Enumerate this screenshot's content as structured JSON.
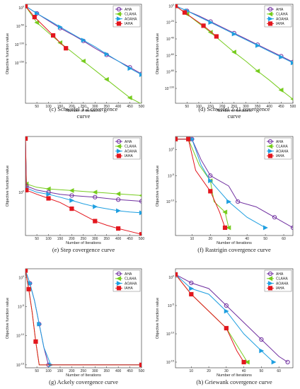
{
  "colors": {
    "AHA": "#7030A0",
    "CLAHA": "#77CC1F",
    "AOAHA": "#1F9FE0",
    "IAHA": "#E3171E"
  },
  "chart_data": [
    {
      "id": "c",
      "type": "line",
      "yscale": "log",
      "caption_lines": [
        "(c) Schwefel 1.2 covergence",
        "curve"
      ],
      "xlabel": "Number of Iterations",
      "ylabel": "Objective function value",
      "xlim": [
        1,
        500
      ],
      "xticks": [
        50,
        100,
        150,
        200,
        250,
        300,
        350,
        400,
        450,
        500
      ],
      "ylim_exp": [
        -260,
        10
      ],
      "ytick_exps": [
        0,
        -50,
        -100,
        -150
      ],
      "ytick_labels": [
        "10^0",
        "10^-50",
        "10^-100",
        "10^-150"
      ],
      "legend": [
        "AHA",
        "CLAHA",
        "AOAHA",
        "IAHA"
      ],
      "series": [
        {
          "name": "AHA",
          "x": [
            1,
            50,
            100,
            150,
            200,
            250,
            300,
            350,
            400,
            450,
            500
          ],
          "y_exp": [
            5,
            -15,
            -35,
            -55,
            -72,
            -90,
            -110,
            -128,
            -145,
            -162,
            -180
          ]
        },
        {
          "name": "AOAHA",
          "x": [
            1,
            50,
            100,
            150,
            200,
            250,
            300,
            350,
            400,
            450,
            500
          ],
          "y_exp": [
            5,
            -15,
            -33,
            -52,
            -70,
            -88,
            -106,
            -126,
            -145,
            -165,
            -182
          ]
        },
        {
          "name": "CLAHA",
          "x": [
            1,
            50,
            100,
            150,
            200,
            250,
            300,
            350,
            400,
            450,
            500
          ],
          "y_exp": [
            5,
            -40,
            -68,
            -95,
            -120,
            -145,
            -170,
            -195,
            -220,
            -245,
            -262
          ]
        },
        {
          "name": "IAHA",
          "x": [
            1,
            40,
            80,
            120,
            150,
            175
          ],
          "y_exp": [
            5,
            -25,
            -50,
            -75,
            -95,
            -110
          ]
        }
      ]
    },
    {
      "id": "d",
      "type": "line",
      "yscale": "log",
      "caption_lines": [
        "(d) Schwefel 2.21 covergence",
        "curve"
      ],
      "xlabel": "Number of Iterations",
      "ylabel": "Objective function value",
      "xlim": [
        1,
        500
      ],
      "xticks": [
        50,
        100,
        150,
        200,
        250,
        300,
        350,
        400,
        450,
        500
      ],
      "ylim_exp": [
        -118,
        2
      ],
      "ytick_exps": [
        0,
        -20,
        -40,
        -60,
        -80,
        -100
      ],
      "ytick_labels": [
        "10^0",
        "10^-20",
        "10^-40",
        "10^-60",
        "10^-80",
        "10^-100"
      ],
      "legend": [
        "AHA",
        "CLAHA",
        "AOAHA",
        "IAHA"
      ],
      "series": [
        {
          "name": "AHA",
          "x": [
            1,
            50,
            100,
            150,
            200,
            250,
            300,
            350,
            400,
            450,
            500
          ],
          "y_exp": [
            0,
            -6,
            -12,
            -19,
            -26,
            -33,
            -40,
            -47,
            -54,
            -61,
            -68
          ]
        },
        {
          "name": "AOAHA",
          "x": [
            1,
            50,
            100,
            150,
            200,
            250,
            300,
            350,
            400,
            450,
            500
          ],
          "y_exp": [
            0,
            -6,
            -13,
            -20,
            -27,
            -34,
            -41,
            -48,
            -55,
            -62,
            -69
          ]
        },
        {
          "name": "CLAHA",
          "x": [
            1,
            50,
            100,
            150,
            200,
            250,
            300,
            350,
            400,
            450,
            500
          ],
          "y_exp": [
            0,
            -10,
            -21,
            -32,
            -44,
            -56,
            -67,
            -79,
            -90,
            -102,
            -113
          ]
        },
        {
          "name": "IAHA",
          "x": [
            1,
            40,
            80,
            120,
            150,
            175
          ],
          "y_exp": [
            0,
            -8,
            -16,
            -24,
            -31,
            -37
          ]
        }
      ]
    },
    {
      "id": "e",
      "type": "line",
      "yscale": "log",
      "caption_lines": [
        "(e) Step covergence curve"
      ],
      "xlabel": "Number of Iterations",
      "ylabel": "Objective function value",
      "xlim": [
        1,
        500
      ],
      "xticks": [
        50,
        100,
        150,
        200,
        250,
        300,
        350,
        400,
        450,
        500
      ],
      "ylim_exp": [
        -1.05,
        1.35
      ],
      "ytick_exps": [
        0
      ],
      "ytick_labels": [
        "10^0"
      ],
      "legend": [
        "AHA",
        "CLAHA",
        "AOAHA",
        "IAHA"
      ],
      "series": [
        {
          "name": "CLAHA",
          "x": [
            1,
            5,
            50,
            100,
            150,
            200,
            250,
            300,
            350,
            400,
            450,
            500
          ],
          "y_exp": [
            1.3,
            0.2,
            0.12,
            0.08,
            0.06,
            0.04,
            0.02,
            0.0,
            -0.02,
            -0.04,
            -0.06,
            -0.08
          ]
        },
        {
          "name": "AHA",
          "x": [
            1,
            5,
            50,
            100,
            150,
            200,
            250,
            300,
            350,
            400,
            450,
            500
          ],
          "y_exp": [
            1.3,
            0.15,
            0.05,
            0.0,
            -0.05,
            -0.08,
            -0.1,
            -0.12,
            -0.15,
            -0.18,
            -0.2,
            -0.22
          ]
        },
        {
          "name": "AOAHA",
          "x": [
            1,
            5,
            50,
            100,
            150,
            200,
            250,
            300,
            350,
            400,
            450,
            500
          ],
          "y_exp": [
            1.3,
            0.1,
            0.0,
            -0.05,
            -0.12,
            -0.2,
            -0.28,
            -0.35,
            -0.4,
            -0.45,
            -0.48,
            -0.5
          ]
        },
        {
          "name": "IAHA",
          "x": [
            1,
            5,
            50,
            100,
            150,
            200,
            250,
            300,
            350,
            400,
            450,
            500
          ],
          "y_exp": [
            1.3,
            0.05,
            -0.05,
            -0.15,
            -0.25,
            -0.4,
            -0.55,
            -0.7,
            -0.8,
            -0.88,
            -0.95,
            -1.02
          ]
        }
      ]
    },
    {
      "id": "f",
      "type": "line",
      "yscale": "log",
      "caption_lines": [
        "(f) Rastrigin covergence curve"
      ],
      "xlabel": "Number of Iterations",
      "ylabel": "Objective function value",
      "xlim": [
        1,
        65
      ],
      "xticks": [
        10,
        20,
        30,
        40,
        50,
        60
      ],
      "ylim_exp": [
        -16.5,
        2.5
      ],
      "ytick_exps": [
        0,
        -5,
        -10
      ],
      "ytick_labels": [
        "10^0",
        "10^-5",
        "10^-10"
      ],
      "legend": [
        "AHA",
        "CLAHA",
        "AOAHA",
        "IAHA"
      ],
      "series": [
        {
          "name": "AHA",
          "x": [
            1,
            10,
            15,
            20,
            30,
            35,
            45,
            55,
            60,
            65
          ],
          "y_exp": [
            2,
            2,
            -2,
            -5,
            -7,
            -10,
            -11,
            -13,
            -14,
            -15
          ]
        },
        {
          "name": "CLAHA",
          "x": [
            1,
            8,
            14,
            20,
            22,
            28,
            30
          ],
          "y_exp": [
            2,
            2,
            -3,
            -6,
            -10,
            -12,
            -15
          ]
        },
        {
          "name": "AOAHA",
          "x": [
            1,
            10,
            15,
            20,
            25,
            30,
            40,
            50
          ],
          "y_exp": [
            2,
            2,
            -3,
            -6,
            -8,
            -10,
            -13,
            -15
          ]
        },
        {
          "name": "IAHA",
          "x": [
            1,
            8,
            12,
            20,
            25,
            28
          ],
          "y_exp": [
            2,
            2,
            -4,
            -8,
            -12,
            -15
          ]
        }
      ]
    },
    {
      "id": "g",
      "type": "line",
      "yscale": "log",
      "caption_lines": [
        "(g) Ackely covergence curve"
      ],
      "xlabel": "Number of Iterations",
      "ylabel": "Objective function value",
      "xlim": [
        1,
        500
      ],
      "xticks": [
        50,
        100,
        150,
        200,
        250,
        300,
        350,
        400,
        450,
        500
      ],
      "ylim_exp": [
        -15.5,
        1.5
      ],
      "ytick_exps": [
        0,
        -5,
        -10,
        -15
      ],
      "ytick_labels": [
        "10^0",
        "10^-5",
        "10^-10",
        "10^-15"
      ],
      "legend": [
        "AHA",
        "CLAHA",
        "AOAHA",
        "IAHA"
      ],
      "series": [
        {
          "name": "AHA",
          "x": [
            1,
            20,
            40,
            60,
            80,
            100,
            500
          ],
          "y_exp": [
            1.2,
            -1,
            -4,
            -8,
            -12,
            -15,
            -15
          ]
        },
        {
          "name": "AOAHA",
          "x": [
            1,
            20,
            40,
            60,
            80,
            110,
            500
          ],
          "y_exp": [
            1.2,
            -1,
            -4,
            -8,
            -12,
            -15,
            -15
          ]
        },
        {
          "name": "CLAHA",
          "x": [
            1,
            15,
            30,
            45,
            60,
            500
          ],
          "y_exp": [
            1.2,
            -2,
            -6,
            -11,
            -15,
            -15
          ]
        },
        {
          "name": "IAHA",
          "x": [
            1,
            15,
            30,
            45,
            60,
            500
          ],
          "y_exp": [
            1.2,
            -2,
            -6,
            -11,
            -15,
            -15
          ]
        }
      ]
    },
    {
      "id": "h",
      "type": "line",
      "yscale": "log",
      "caption_lines": [
        "(h) Griewank covergence curve"
      ],
      "xlabel": "Number of Iterations",
      "ylabel": "Objective function value",
      "xlim": [
        1,
        68
      ],
      "xticks": [
        10,
        20,
        30,
        40,
        50,
        60
      ],
      "ylim_exp": [
        -16,
        1.5
      ],
      "ytick_exps": [
        0,
        -5,
        -10,
        -15
      ],
      "ytick_labels": [
        "10^0",
        "10^-5",
        "10^-10",
        "10^-15"
      ],
      "legend": [
        "AHA",
        "CLAHA",
        "AOAHA",
        "IAHA"
      ],
      "series": [
        {
          "name": "AHA",
          "x": [
            1,
            10,
            20,
            30,
            40,
            50,
            60,
            65
          ],
          "y_exp": [
            0.5,
            -1,
            -2,
            -5,
            -8,
            -11,
            -14,
            -15
          ]
        },
        {
          "name": "CLAHA",
          "x": [
            1,
            10,
            20,
            30,
            38,
            42
          ],
          "y_exp": [
            0.5,
            -3,
            -6,
            -9,
            -13,
            -15
          ]
        },
        {
          "name": "AOAHA",
          "x": [
            1,
            10,
            20,
            30,
            40,
            50,
            57
          ],
          "y_exp": [
            0.5,
            -2,
            -3,
            -6,
            -10,
            -13,
            -15
          ]
        },
        {
          "name": "IAHA",
          "x": [
            1,
            10,
            20,
            30,
            36,
            40
          ],
          "y_exp": [
            0.5,
            -3,
            -6,
            -9,
            -13,
            -15
          ]
        }
      ]
    }
  ]
}
